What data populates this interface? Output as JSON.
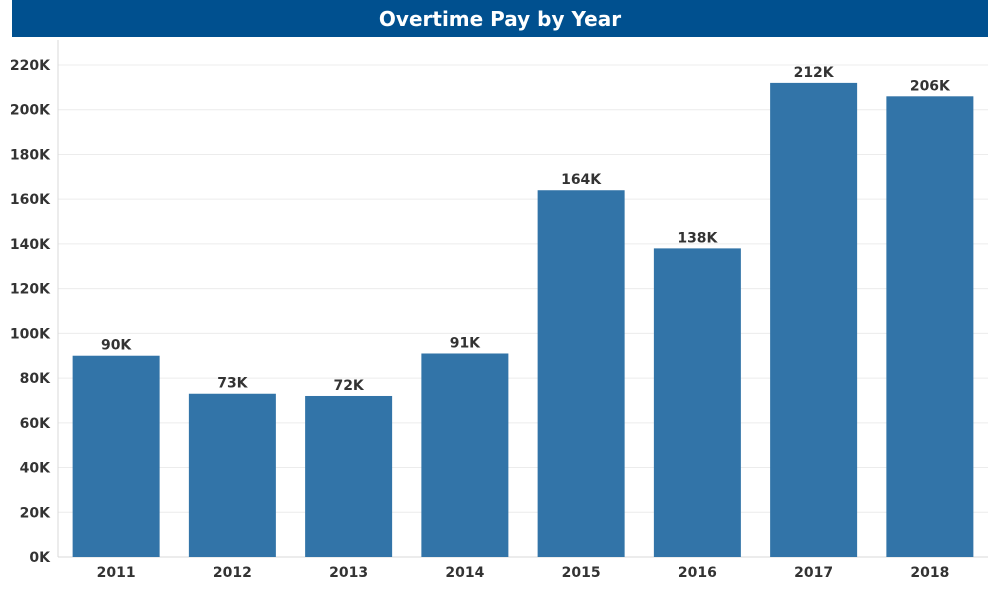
{
  "chart_data": {
    "type": "bar",
    "title": "Overtime Pay by Year",
    "categories": [
      "2011",
      "2012",
      "2013",
      "2014",
      "2015",
      "2016",
      "2017",
      "2018"
    ],
    "values": [
      90000,
      73000,
      72000,
      91000,
      164000,
      138000,
      212000,
      206000
    ],
    "data_labels": [
      "90K",
      "73K",
      "72K",
      "91K",
      "164K",
      "138K",
      "212K",
      "206K"
    ],
    "y_ticks": [
      0,
      20000,
      40000,
      60000,
      80000,
      100000,
      120000,
      140000,
      160000,
      180000,
      200000,
      220000
    ],
    "y_tick_labels": [
      "0K",
      "20K",
      "40K",
      "60K",
      "80K",
      "100K",
      "120K",
      "140K",
      "160K",
      "180K",
      "200K",
      "220K"
    ],
    "ylim": [
      0,
      220000
    ],
    "xlabel": "",
    "ylabel": "",
    "grid": true,
    "bar_color": "#3274a8",
    "title_bar_color": "#00508f"
  }
}
